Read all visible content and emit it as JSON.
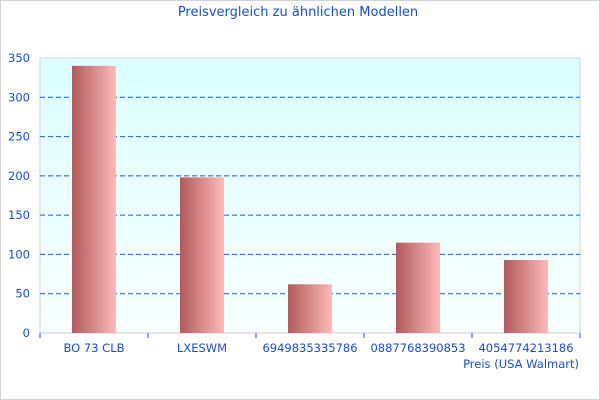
{
  "chart_data": {
    "type": "bar",
    "title": "Preisvergleich zu ähnlichen Modellen",
    "xlabel": "Preis (USA Walmart)",
    "ylabel": "",
    "categories": [
      "BO 73 CLB",
      "LXESWM",
      "6949835335786",
      "0887768390853",
      "4054774213186"
    ],
    "values": [
      340,
      198,
      62,
      115,
      93
    ],
    "ylim": [
      0,
      350
    ],
    "yticks": [
      0,
      50,
      100,
      150,
      200,
      250,
      300,
      350
    ],
    "grid": true,
    "legend": "none",
    "colors": {
      "text": "#1a4fc4",
      "grid": "#2255dd",
      "bar_dark": "#b05a5a",
      "bar_light": "#ffbaba",
      "bg_top": "#dcffff",
      "bg_bottom": "#f8ffff"
    }
  }
}
